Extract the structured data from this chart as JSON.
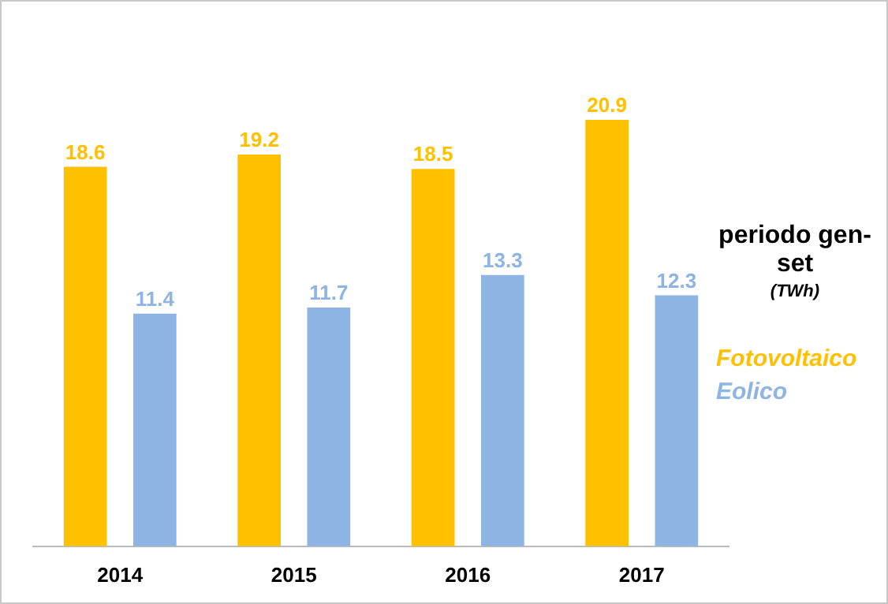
{
  "chart_data": {
    "type": "bar",
    "categories": [
      "2014",
      "2015",
      "2016",
      "2017"
    ],
    "series": [
      {
        "name": "Fotovoltaico",
        "color": "#ffc000",
        "values": [
          18.6,
          19.2,
          18.5,
          20.9
        ]
      },
      {
        "name": "Eolico",
        "color": "#8eb4e3",
        "values": [
          11.4,
          11.7,
          13.3,
          12.3
        ]
      }
    ],
    "data_labels": true,
    "legend": "right",
    "legend_title": "periodo gen-set",
    "annotations": [
      "(TWh)"
    ],
    "grid": false,
    "tick_labels": "x"
  }
}
